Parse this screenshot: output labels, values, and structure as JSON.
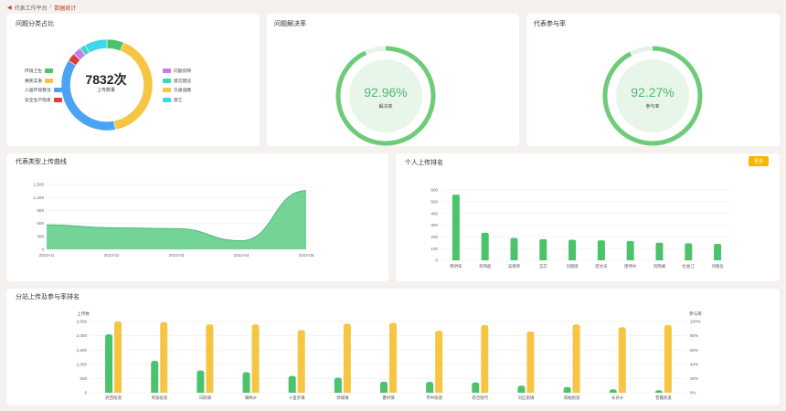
{
  "breadcrumb": {
    "parent": "代表工作平台",
    "separator": "/",
    "current": "数据统计"
  },
  "pie_card": {
    "title": "问题分类占比",
    "total": "7832次",
    "total_label": "上传数量",
    "legend_left": [
      {
        "label": "环境卫生",
        "color": "#4cc26b"
      },
      {
        "label": "惠民实事",
        "color": "#f7c544"
      },
      {
        "label": "人居环境整治",
        "color": "#4aa3f5"
      },
      {
        "label": "安全生产隐患",
        "color": "#e23b3b"
      }
    ],
    "legend_right": [
      {
        "label": "问题反映",
        "color": "#c77de8"
      },
      {
        "label": "意见建议",
        "color": "#3dd5c9"
      },
      {
        "label": "交通道路",
        "color": "#f7c544"
      },
      {
        "label": "其它",
        "color": "#3ed8ee"
      }
    ]
  },
  "resolve_card": {
    "title": "问题解决率",
    "value": "92.96%",
    "label": "解决率",
    "rate": 0.9296
  },
  "participate_card": {
    "title": "代表参与率",
    "value": "92.27%",
    "label": "参与率",
    "rate": 0.9227
  },
  "trend_card": {
    "title": "代表类型上传曲线"
  },
  "rank_card": {
    "title": "个人上传排名",
    "more": "更多"
  },
  "branch_card": {
    "title": "分站上传及参与率排名",
    "left_axis": "上传数",
    "right_axis": "参与率"
  },
  "chart_data": [
    {
      "type": "pie",
      "title": "问题分类占比",
      "labels": [
        "环境卫生",
        "惠民实事",
        "人居环境整治",
        "安全生产隐患",
        "问题反映",
        "意见建议",
        "交通道路",
        "其它"
      ],
      "values": [
        6,
        41,
        37,
        3,
        3,
        2,
        0,
        8
      ],
      "colors": [
        "#4cc26b",
        "#f7c544",
        "#4aa3f5",
        "#e23b3b",
        "#c77de8",
        "#3dd5c9",
        "#f7c544",
        "#3ed8ee"
      ]
    },
    {
      "type": "area",
      "title": "代表类型上传曲线",
      "x": [
        "2023-01",
        "2023-02",
        "2023-03",
        "2023-04",
        "2023-05"
      ],
      "y": [
        570,
        500,
        480,
        200,
        1360
      ],
      "yticks": [
        0,
        300,
        600,
        900,
        1200,
        1500
      ],
      "yticklabels": [
        "0",
        "300",
        "600",
        "900",
        "1,200",
        "1,500"
      ],
      "ylim": [
        0,
        1500
      ],
      "color": "#5ccb85"
    },
    {
      "type": "bar",
      "title": "个人上传排名",
      "categories": [
        "韩洪军",
        "何伟超",
        "吴德荣",
        "王芯",
        "刘丽丽",
        "庞文天",
        "唐伟尔",
        "刘晓峰",
        "杜伯江",
        "刘德岳"
      ],
      "values": [
        560,
        235,
        190,
        180,
        175,
        170,
        165,
        150,
        145,
        140
      ],
      "yticks": [
        0,
        100,
        200,
        300,
        400,
        500,
        600
      ],
      "ylim": [
        0,
        600
      ],
      "color": "#4cc26b"
    },
    {
      "type": "bar",
      "title": "分站上传及参与率排名",
      "categories": [
        "府西街道",
        "周张街道",
        "日照镇",
        "横林乡",
        "十里亭镇",
        "郭城镇",
        "曹村镇",
        "市中街道",
        "新合街代",
        "刘庄南镇",
        "南柏街道",
        "长开乡",
        "普鑫街道"
      ],
      "series": [
        {
          "name": "上传数",
          "values": [
            2050,
            1120,
            780,
            720,
            590,
            530,
            390,
            380,
            360,
            250,
            200,
            120,
            90
          ],
          "color": "#4cc26b",
          "axis": "left"
        },
        {
          "name": "参与率",
          "values": [
            100,
            99,
            96,
            96,
            88,
            97,
            98,
            87,
            95,
            86,
            96,
            92,
            95
          ],
          "color": "#f7c544",
          "axis": "right"
        }
      ],
      "left_yticks": [
        0,
        500,
        1000,
        1500,
        2000,
        2500
      ],
      "left_yticklabels": [
        "0",
        "500",
        "1,000",
        "1,500",
        "2,000",
        "2,500"
      ],
      "right_yticks": [
        0,
        20,
        40,
        60,
        80,
        100
      ],
      "right_yticklabels": [
        "0%",
        "20%",
        "40%",
        "60%",
        "80%",
        "100%"
      ],
      "ylim_left": [
        0,
        2500
      ],
      "ylim_right": [
        0,
        100
      ]
    }
  ]
}
